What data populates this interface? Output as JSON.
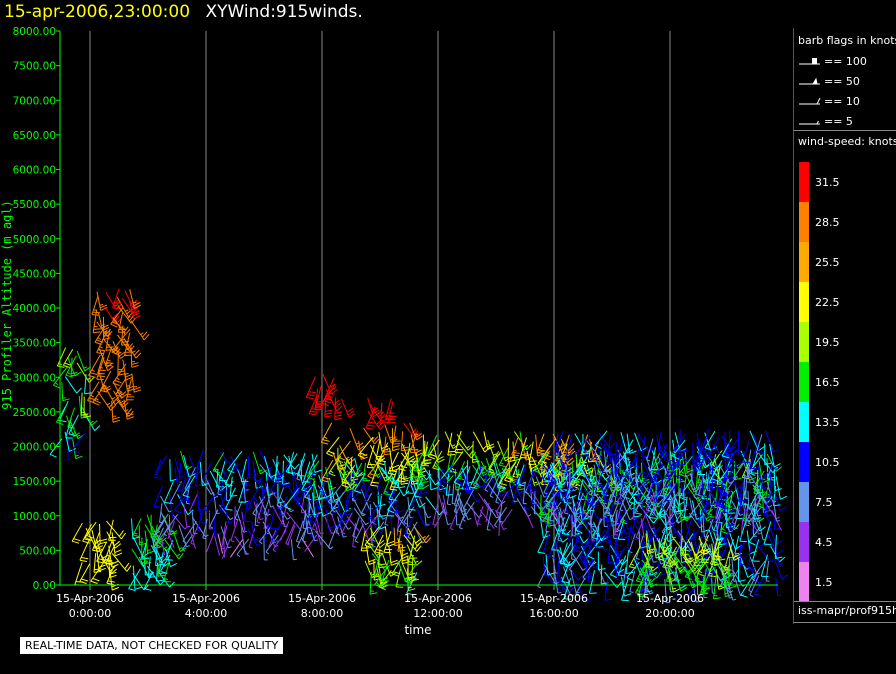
{
  "header": {
    "timestamp": "15-apr-2006,23:00:00",
    "name": "XYWind:915winds."
  },
  "notice": "REAL-TIME DATA, NOT CHECKED FOR QUALITY",
  "source_label": "iss-mapr/prof915h",
  "chart_data": {
    "type": "wind-barb",
    "xlabel": "time",
    "ylabel": "915 Profiler Altitude (m agl)",
    "ylim": [
      0,
      8000
    ],
    "xlim_hours": [
      -1.5,
      23.7
    ],
    "y_ticks": [
      "0.00",
      "500.00",
      "1000.00",
      "1500.00",
      "2000.00",
      "2500.00",
      "3000.00",
      "3500.00",
      "4000.00",
      "4500.00",
      "5000.00",
      "5500.00",
      "6000.00",
      "6500.00",
      "7000.00",
      "7500.00",
      "8000.00"
    ],
    "x_ticks": [
      {
        "hour": 0,
        "date": "15-Apr-2006",
        "time": "0:00:00"
      },
      {
        "hour": 4,
        "date": "15-Apr-2006",
        "time": "4:00:00"
      },
      {
        "hour": 8,
        "date": "15-Apr-2006",
        "time": "8:00:00"
      },
      {
        "hour": 12,
        "date": "15-Apr-2006",
        "time": "12:00:00"
      },
      {
        "hour": 16,
        "date": "15-Apr-2006",
        "time": "16:00:00"
      },
      {
        "hour": 20,
        "date": "15-Apr-2006",
        "time": "20:00:00"
      }
    ],
    "grid": {
      "vertical": true,
      "horizontal": false
    },
    "barb_legend": {
      "title": "barb flags in knots",
      "items": [
        {
          "label": "== 100"
        },
        {
          "label": "== 50"
        },
        {
          "label": "== 10"
        },
        {
          "label": "== 5"
        }
      ]
    },
    "speed_scale": {
      "title": "wind-speed: knots",
      "bins": [
        {
          "label": "31.5",
          "color": "#ff0000"
        },
        {
          "label": "28.5",
          "color": "#ff7f00"
        },
        {
          "label": "25.5",
          "color": "#ffaa00"
        },
        {
          "label": "22.5",
          "color": "#ffff00"
        },
        {
          "label": "19.5",
          "color": "#aaff00"
        },
        {
          "label": "16.5",
          "color": "#00ee00"
        },
        {
          "label": "13.5",
          "color": "#00ffff"
        },
        {
          "label": "10.5",
          "color": "#0000ff"
        },
        {
          "label": "7.5",
          "color": "#6495ed"
        },
        {
          "label": "4.5",
          "color": "#9932f0"
        },
        {
          "label": "1.5",
          "color": "#ee82ee"
        }
      ]
    },
    "colors": {
      "axis": "#00ff00",
      "tick_label_y": "#00ff00",
      "tick_label_x": "#ffffff",
      "grid": "#888888"
    },
    "barb_clusters": [
      {
        "hours": [
          -1.4,
          -0.2
        ],
        "alt": [
          2100,
          3400
        ],
        "speed": [
          9,
          22
        ]
      },
      {
        "hours": [
          0.3,
          1.4
        ],
        "alt": [
          2700,
          4250
        ],
        "speed": [
          27,
          31
        ]
      },
      {
        "hours": [
          -0.2,
          0.8
        ],
        "alt": [
          300,
          900
        ],
        "speed": [
          21,
          24
        ]
      },
      {
        "hours": [
          1.5,
          2.8
        ],
        "alt": [
          200,
          1000
        ],
        "speed": [
          12,
          18
        ]
      },
      {
        "hours": [
          2.5,
          7.8
        ],
        "alt": [
          700,
          1900
        ],
        "speed": [
          2,
          16
        ]
      },
      {
        "hours": [
          7.5,
          11.5
        ],
        "alt": [
          900,
          1800
        ],
        "speed": [
          3,
          18
        ]
      },
      {
        "hours": [
          8.4,
          11.2
        ],
        "alt": [
          1700,
          2300
        ],
        "speed": [
          16,
          31
        ]
      },
      {
        "hours": [
          11.5,
          15
        ],
        "alt": [
          1700,
          2200
        ],
        "speed": [
          12,
          23
        ]
      },
      {
        "hours": [
          14.5,
          17.5
        ],
        "alt": [
          1700,
          2150
        ],
        "speed": [
          18,
          29
        ]
      },
      {
        "hours": [
          12,
          16
        ],
        "alt": [
          1100,
          1700
        ],
        "speed": [
          3,
          13
        ]
      },
      {
        "hours": [
          9.5,
          11.2
        ],
        "alt": [
          200,
          800
        ],
        "speed": [
          14,
          26
        ]
      },
      {
        "hours": [
          7.8,
          8.6
        ],
        "alt": [
          2700,
          3000
        ],
        "speed": [
          30,
          32
        ]
      },
      {
        "hours": [
          9.6,
          10.4
        ],
        "alt": [
          2550,
          2700
        ],
        "speed": [
          30,
          32
        ]
      },
      {
        "hours": [
          15.6,
          23.6
        ],
        "alt": [
          100,
          1900
        ],
        "speed": [
          6,
          19
        ]
      },
      {
        "hours": [
          16,
          23.5
        ],
        "alt": [
          1000,
          2200
        ],
        "speed": [
          4,
          14
        ]
      },
      {
        "hours": [
          19,
          22
        ],
        "alt": [
          150,
          700
        ],
        "speed": [
          15,
          22
        ]
      }
    ]
  }
}
